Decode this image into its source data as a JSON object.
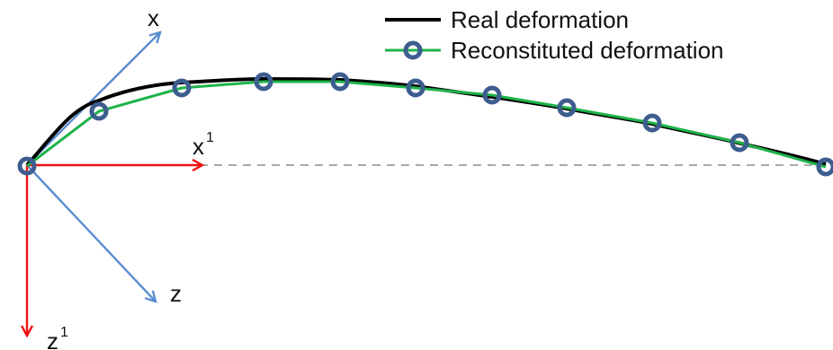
{
  "legend": {
    "real_label": "Real deformation",
    "reconstituted_label": "Reconstituted deformation"
  },
  "axes": {
    "x_label": "x",
    "z_label": "z",
    "x1_label": "x",
    "x1_superscript": "1",
    "z1_label": "z",
    "z1_superscript": "1"
  },
  "colors": {
    "real_curve": "#000000",
    "reconstituted_curve": "#1db34a",
    "marker_edge": "#3d5d8f",
    "rotated_axes": "#5b8ed0",
    "reference_axes": "#ee1111",
    "baseline": "#aaaaaa"
  }
}
